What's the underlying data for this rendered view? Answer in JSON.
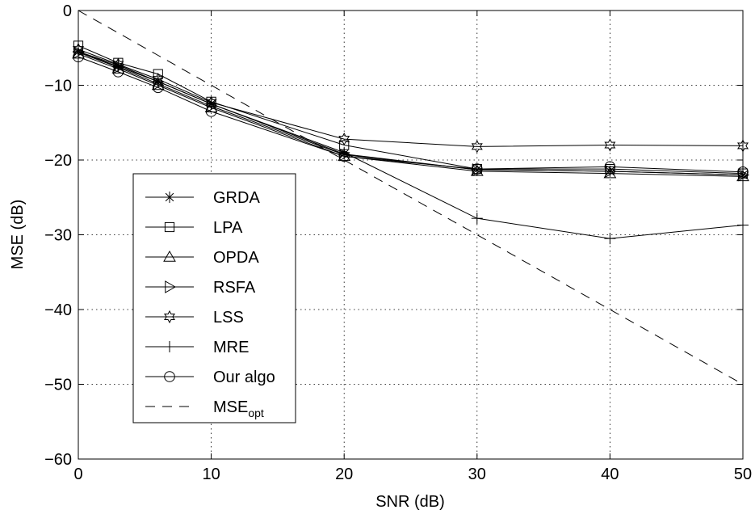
{
  "chart_data": {
    "type": "line",
    "title": "",
    "xlabel": "SNR (dB)",
    "ylabel": "MSE (dB)",
    "xlim": [
      0,
      50
    ],
    "ylim": [
      -60,
      0
    ],
    "xticks": [
      0,
      10,
      20,
      30,
      40,
      50
    ],
    "yticks": [
      0,
      -10,
      -20,
      -30,
      -40,
      -50,
      -60
    ],
    "xtick_labels": [
      "0",
      "10",
      "20",
      "30",
      "40",
      "50"
    ],
    "ytick_labels": [
      "0",
      "−10",
      "−20",
      "−30",
      "−40",
      "−50",
      "−60"
    ],
    "grid": true,
    "legend_position": "left",
    "x": [
      0,
      3,
      6,
      10,
      20,
      30,
      40,
      50
    ],
    "series": [
      {
        "name": "GRDA",
        "marker": "asterisk",
        "values": [
          -5.5,
          -7.5,
          -9.5,
          -12.5,
          -19.2,
          -21.3,
          -21.5,
          -22.0
        ]
      },
      {
        "name": "LPA",
        "marker": "square",
        "values": [
          -4.7,
          -7.0,
          -8.5,
          -12.2,
          -18.0,
          -21.2,
          -21.2,
          -21.8
        ]
      },
      {
        "name": "OPDA",
        "marker": "triangle-up",
        "values": [
          -5.8,
          -7.8,
          -10.0,
          -13.0,
          -19.5,
          -21.5,
          -21.8,
          -22.2
        ]
      },
      {
        "name": "RSFA",
        "marker": "triangle-right",
        "values": [
          -5.6,
          -7.6,
          -9.8,
          -12.8,
          -19.3,
          -21.3,
          -21.5,
          -22.0
        ]
      },
      {
        "name": "LSS",
        "marker": "hexagram",
        "values": [
          -5.2,
          -7.2,
          -9.2,
          -12.3,
          -17.2,
          -18.2,
          -18.0,
          -18.1
        ]
      },
      {
        "name": "MRE",
        "marker": "plus",
        "values": [
          -5.5,
          -7.3,
          -9.5,
          -12.5,
          -19.0,
          -27.8,
          -30.5,
          -28.7
        ]
      },
      {
        "name": "Our algo",
        "marker": "circle",
        "values": [
          -6.2,
          -8.2,
          -10.3,
          -13.5,
          -19.5,
          -21.2,
          -20.9,
          -21.6
        ]
      },
      {
        "name": "MSE",
        "name_sub": "opt",
        "marker": "none",
        "dashed": true,
        "values": [
          0,
          -3,
          -6,
          -10,
          -20,
          -30,
          -40,
          -50
        ]
      }
    ],
    "color": "#000000"
  }
}
